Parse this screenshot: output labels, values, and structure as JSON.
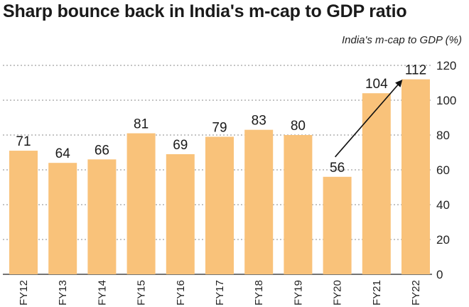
{
  "title": "Sharp bounce back in India's m-cap to GDP ratio",
  "chart_data": {
    "type": "bar",
    "ylabel": "India's m-cap to GDP (%)",
    "categories": [
      "FY12",
      "FY13",
      "FY14",
      "FY15",
      "FY16",
      "FY17",
      "FY18",
      "FY19",
      "FY20",
      "FY21",
      "FY22"
    ],
    "values": [
      71,
      64,
      66,
      81,
      69,
      79,
      83,
      80,
      56,
      104,
      112
    ],
    "ylim": [
      0,
      120
    ],
    "yticks": [
      0,
      20,
      40,
      60,
      80,
      100,
      120
    ],
    "grid": true,
    "bar_color": "#F9C27A",
    "annotation": "arrow from FY20 to FY22"
  }
}
